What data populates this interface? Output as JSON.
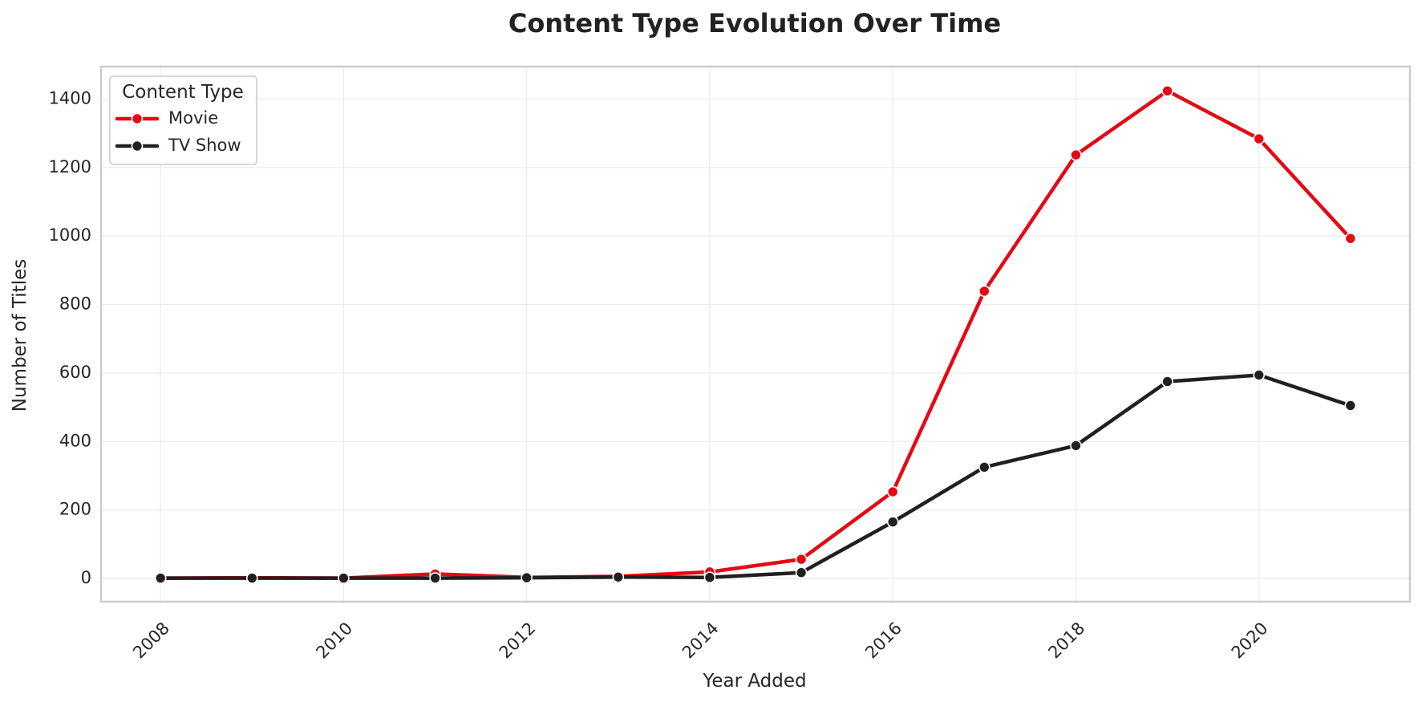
{
  "chart_data": {
    "type": "line",
    "title": "Content Type Evolution Over Time",
    "xlabel": "Year Added",
    "ylabel": "Number of Titles",
    "x": [
      2008,
      2009,
      2010,
      2011,
      2012,
      2013,
      2014,
      2015,
      2016,
      2017,
      2018,
      2019,
      2020,
      2021
    ],
    "x_ticks": [
      2008,
      2010,
      2012,
      2014,
      2016,
      2018,
      2020
    ],
    "y_ticks": [
      0,
      200,
      400,
      600,
      800,
      1000,
      1200,
      1400
    ],
    "xlim": [
      2007.35,
      2021.65
    ],
    "ylim": [
      -68,
      1495
    ],
    "grid": true,
    "legend": {
      "title": "Content Type",
      "placement": "top-left"
    },
    "series": [
      {
        "name": "Movie",
        "color": "#e50914",
        "values": [
          1,
          2,
          1,
          13,
          3,
          6,
          19,
          56,
          253,
          839,
          1237,
          1424,
          1284,
          993
        ]
      },
      {
        "name": "TV Show",
        "color": "#221f1f",
        "values": [
          1,
          1,
          1,
          1,
          2,
          4,
          3,
          17,
          165,
          325,
          388,
          575,
          594,
          505
        ]
      }
    ]
  }
}
